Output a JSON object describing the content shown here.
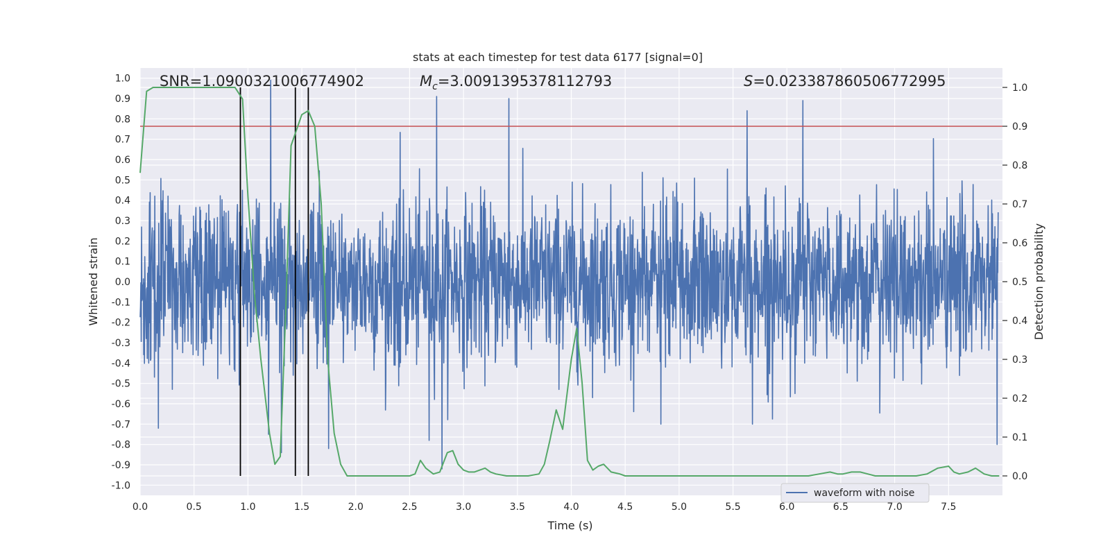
{
  "chart_data": {
    "type": "line",
    "title": "stats at each timestep for test data 6177 [signal=0]",
    "xlabel": "Time (s)",
    "ylabel": "Whitened strain",
    "ylabel_right": "Detection probability",
    "xlim": [
      0.0,
      8.0
    ],
    "ylim": [
      -1.05,
      1.05
    ],
    "ylim_right": [
      -0.05,
      1.05
    ],
    "x_ticks": [
      "0.0",
      "0.5",
      "1.0",
      "1.5",
      "2.0",
      "2.5",
      "3.0",
      "3.5",
      "4.0",
      "4.5",
      "5.0",
      "5.5",
      "6.0",
      "6.5",
      "7.0",
      "7.5"
    ],
    "x_tick_values": [
      0.0,
      0.5,
      1.0,
      1.5,
      2.0,
      2.5,
      3.0,
      3.5,
      4.0,
      4.5,
      5.0,
      5.5,
      6.0,
      6.5,
      7.0,
      7.5
    ],
    "y_ticks": [
      "1.0",
      "0.9",
      "0.8",
      "0.7",
      "0.6",
      "0.5",
      "0.4",
      "0.3",
      "0.2",
      "0.1",
      "0.0",
      "-0.1",
      "-0.2",
      "-0.3",
      "-0.4",
      "-0.5",
      "-0.6",
      "-0.7",
      "-0.8",
      "-0.9",
      "-1.0"
    ],
    "y_tick_values": [
      1.0,
      0.9,
      0.8,
      0.7,
      0.6,
      0.5,
      0.4,
      0.3,
      0.2,
      0.1,
      0.0,
      -0.1,
      -0.2,
      -0.3,
      -0.4,
      -0.5,
      -0.6,
      -0.7,
      -0.8,
      -0.9,
      -1.0
    ],
    "y_ticks_right": [
      "1.0",
      "0.9",
      "0.8",
      "0.7",
      "0.6",
      "0.5",
      "0.4",
      "0.3",
      "0.2",
      "0.1",
      "0.0"
    ],
    "y_tick_values_right": [
      1.0,
      0.9,
      0.8,
      0.7,
      0.6,
      0.5,
      0.4,
      0.3,
      0.2,
      0.1,
      0.0
    ],
    "annotations": {
      "snr": "SNR=1.0900321006774902",
      "mc_symbol": "M",
      "mc_sub": "c",
      "mc_value": "=3.0091395378112793",
      "s_symbol": "S",
      "s_value": "=0.023387860506772995"
    },
    "threshold_right": 0.9,
    "vertical_lines_x": [
      0.93,
      1.44,
      1.56
    ],
    "waveform": {
      "name": "waveform with noise",
      "color": "#4c72b0",
      "samples": 2400,
      "sigma": 0.2,
      "spikes": [
        [
          1.21,
          0.99
        ],
        [
          2.75,
          0.91
        ],
        [
          3.42,
          0.9
        ],
        [
          5.63,
          0.84
        ],
        [
          6.15,
          0.89
        ],
        [
          1.19,
          -0.75
        ],
        [
          1.31,
          -0.84
        ],
        [
          1.75,
          -0.82
        ],
        [
          2.8,
          -0.92
        ],
        [
          2.68,
          -0.78
        ],
        [
          7.95,
          -0.8
        ],
        [
          0.17,
          -0.72
        ],
        [
          4.83,
          -0.7
        ],
        [
          5.68,
          -0.7
        ]
      ]
    },
    "probability": {
      "name": "detection probability",
      "color": "#55a868",
      "x": [
        0.0,
        0.06,
        0.12,
        0.2,
        0.4,
        0.6,
        0.8,
        0.88,
        0.95,
        1.0,
        1.06,
        1.12,
        1.2,
        1.25,
        1.3,
        1.35,
        1.4,
        1.45,
        1.5,
        1.56,
        1.62,
        1.68,
        1.74,
        1.8,
        1.86,
        1.92,
        2.0,
        2.1,
        2.2,
        2.3,
        2.4,
        2.5,
        2.55,
        2.6,
        2.65,
        2.72,
        2.78,
        2.85,
        2.9,
        2.95,
        3.0,
        3.05,
        3.1,
        3.2,
        3.25,
        3.3,
        3.4,
        3.5,
        3.6,
        3.7,
        3.75,
        3.8,
        3.86,
        3.92,
        4.0,
        4.05,
        4.1,
        4.15,
        4.2,
        4.25,
        4.3,
        4.37,
        4.45,
        4.5,
        4.6,
        4.7,
        4.8,
        5.0,
        5.2,
        5.4,
        5.6,
        5.8,
        6.0,
        6.2,
        6.3,
        6.4,
        6.47,
        6.52,
        6.6,
        6.68,
        6.75,
        6.82,
        7.0,
        7.2,
        7.3,
        7.4,
        7.5,
        7.55,
        7.6,
        7.68,
        7.75,
        7.83,
        7.9,
        7.97
      ],
      "y": [
        0.78,
        0.99,
        1.0,
        1.0,
        1.0,
        1.0,
        1.0,
        1.0,
        0.97,
        0.72,
        0.47,
        0.3,
        0.11,
        0.03,
        0.05,
        0.42,
        0.85,
        0.89,
        0.93,
        0.94,
        0.9,
        0.7,
        0.3,
        0.11,
        0.03,
        0.0,
        0.0,
        0.0,
        0.0,
        0.0,
        0.0,
        0.0,
        0.005,
        0.04,
        0.02,
        0.005,
        0.01,
        0.06,
        0.065,
        0.03,
        0.015,
        0.01,
        0.01,
        0.02,
        0.01,
        0.005,
        0.0,
        0.0,
        0.0,
        0.005,
        0.03,
        0.09,
        0.17,
        0.12,
        0.3,
        0.38,
        0.24,
        0.04,
        0.015,
        0.025,
        0.03,
        0.01,
        0.005,
        0.0,
        0.0,
        0.0,
        0.0,
        0.0,
        0.0,
        0.0,
        0.0,
        0.0,
        0.0,
        0.0,
        0.005,
        0.01,
        0.005,
        0.005,
        0.01,
        0.01,
        0.005,
        0.0,
        0.0,
        0.0,
        0.005,
        0.02,
        0.025,
        0.01,
        0.005,
        0.01,
        0.02,
        0.005,
        0.0,
        0.0
      ]
    },
    "threshold_color": "#c44e52",
    "vline_color": "#000000",
    "legend": {
      "position": "bottom-right",
      "entries": [
        "waveform with noise"
      ]
    }
  }
}
